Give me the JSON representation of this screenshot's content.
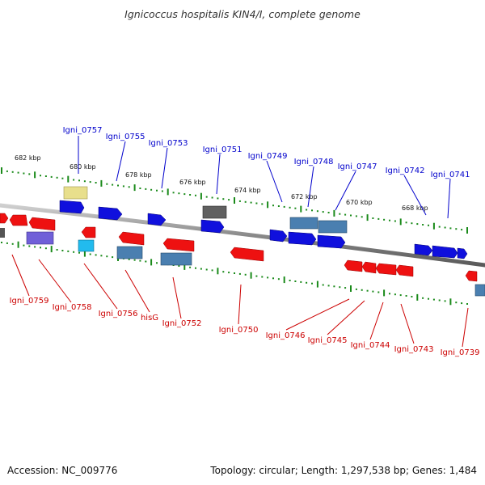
{
  "title": "Ignicoccus hospitalis KIN4/I, complete genome",
  "footer": {
    "accession": "Accession: NC_009776",
    "summary": "Topology: circular; Length: 1,297,538 bp; Genes: 1,484"
  },
  "colors": {
    "forward_label": "#0000cc",
    "reverse_label": "#cc0000",
    "tick": "#1a8a1a",
    "backbone": "#8c8c8c"
  },
  "kbp_marks": [
    "682 kbp",
    "680 kbp",
    "678 kbp",
    "676 kbp",
    "674 kbp",
    "672 kbp",
    "670 kbp",
    "668 kbp"
  ],
  "forward_genes": [
    "Igni_0757",
    "Igni_0755",
    "Igni_0753",
    "Igni_0751",
    "Igni_0749",
    "Igni_0748",
    "Igni_0747",
    "Igni_0742",
    "Igni_0741"
  ],
  "reverse_genes": [
    "Igni_0759",
    "Igni_0758",
    "Igni_0756",
    "hisG",
    "Igni_0752",
    "Igni_0750",
    "Igni_0746",
    "Igni_0745",
    "Igni_0744",
    "Igni_0743",
    "Igni_0739"
  ]
}
